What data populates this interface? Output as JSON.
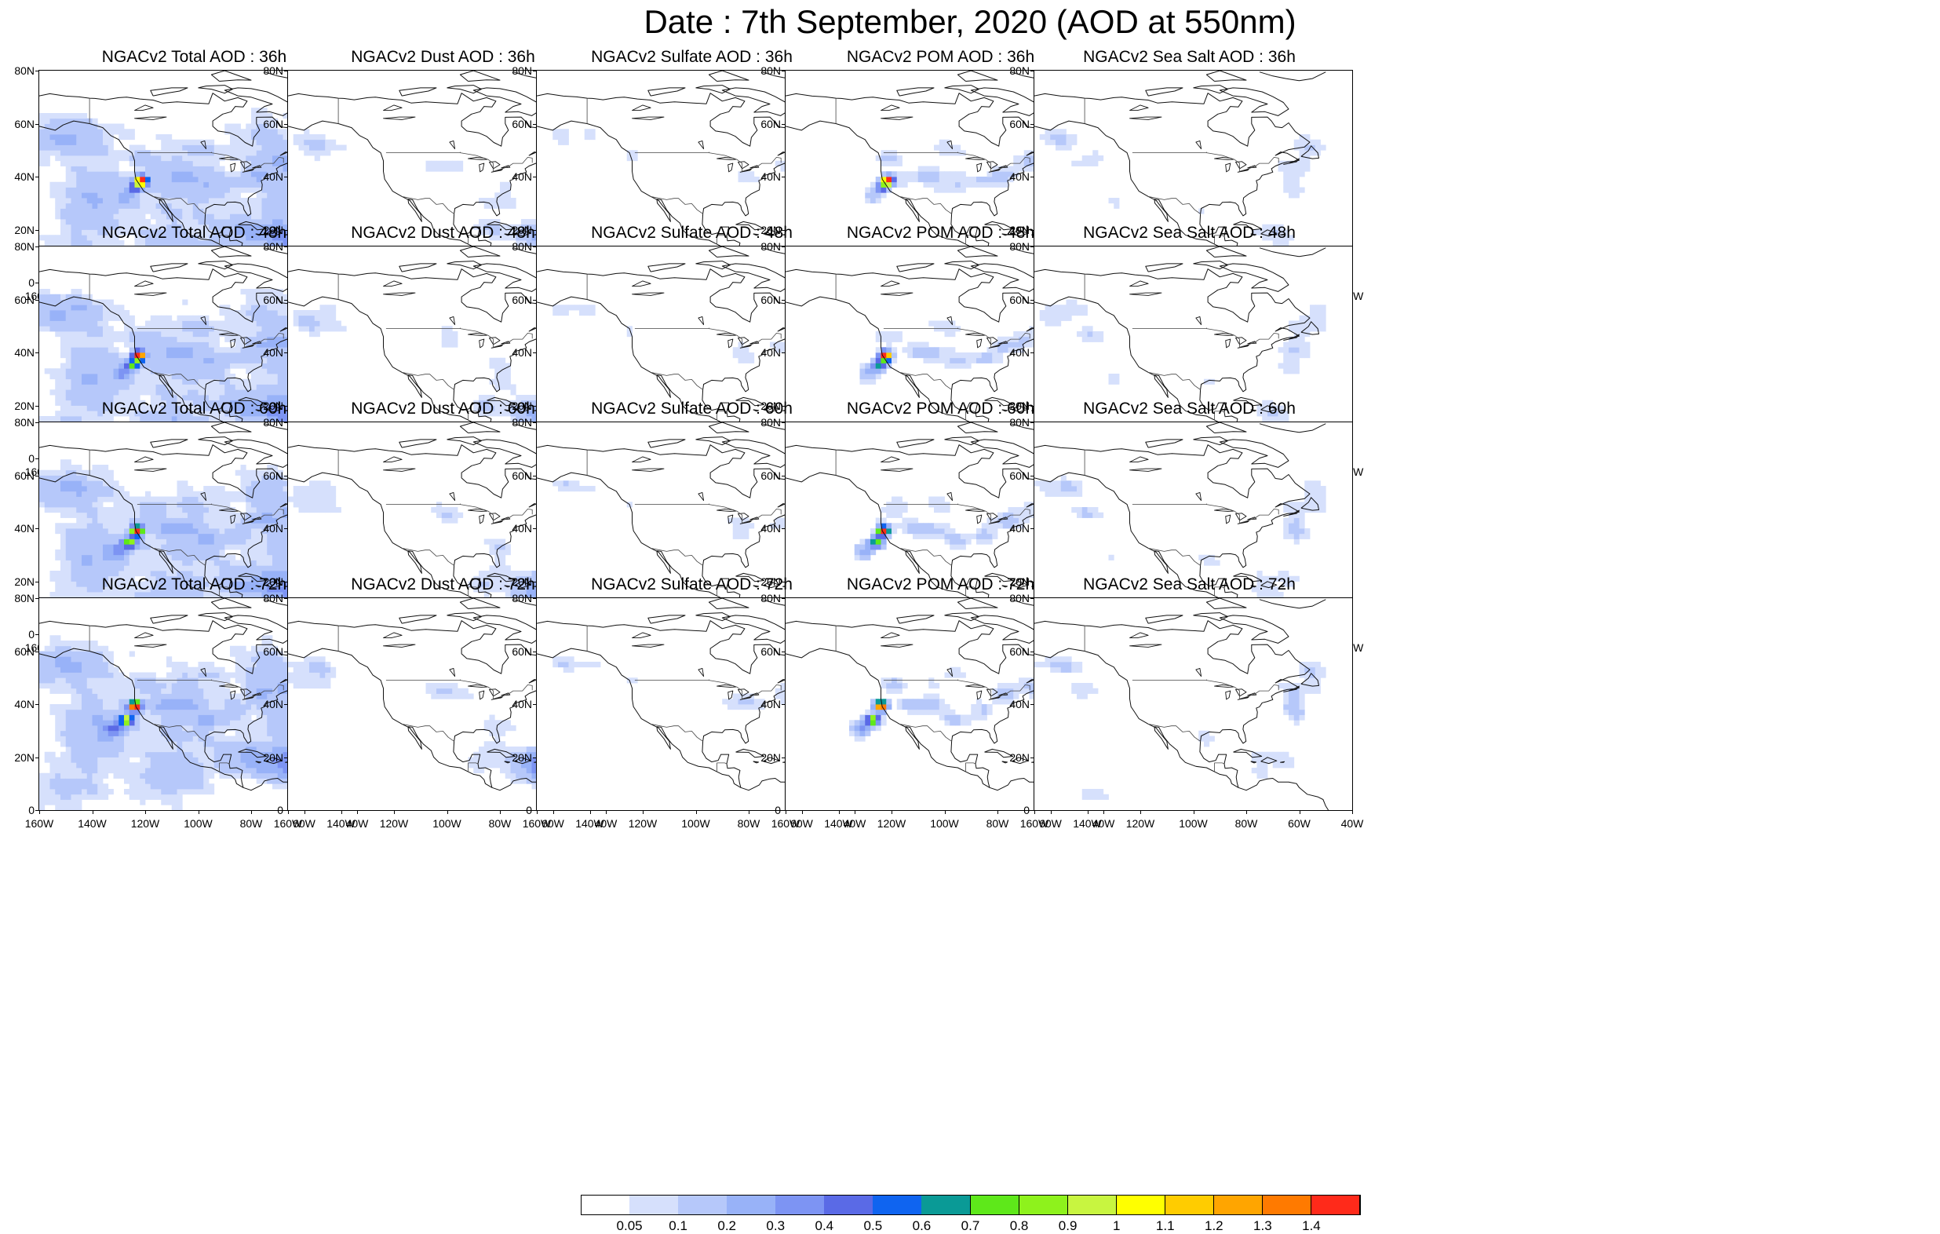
{
  "title": "Date : 7th September, 2020 (AOD at 550nm)",
  "y_tick_labels": [
    "80N",
    "60N",
    "40N",
    "20N",
    "0"
  ],
  "x_tick_labels": [
    "160W",
    "140W",
    "120W",
    "100W",
    "80W",
    "60W",
    "40W"
  ],
  "panels": [
    {
      "title": "NGACv2 Total AOD : 36h",
      "species": "total",
      "hour": 36
    },
    {
      "title": "NGACv2 Dust AOD : 36h",
      "species": "dust",
      "hour": 36
    },
    {
      "title": "NGACv2 Sulfate AOD : 36h",
      "species": "sulfate",
      "hour": 36
    },
    {
      "title": "NGACv2 POM AOD : 36h",
      "species": "pom",
      "hour": 36
    },
    {
      "title": "NGACv2 Sea Salt AOD : 36h",
      "species": "seasalt",
      "hour": 36
    },
    {
      "title": "NGACv2 Total AOD : 48h",
      "species": "total",
      "hour": 48
    },
    {
      "title": "NGACv2 Dust AOD : 48h",
      "species": "dust",
      "hour": 48
    },
    {
      "title": "NGACv2 Sulfate AOD : 48h",
      "species": "sulfate",
      "hour": 48
    },
    {
      "title": "NGACv2 POM AOD : 48h",
      "species": "pom",
      "hour": 48
    },
    {
      "title": "NGACv2 Sea Salt AOD : 48h",
      "species": "seasalt",
      "hour": 48
    },
    {
      "title": "NGACv2 Total AOD : 60h",
      "species": "total",
      "hour": 60
    },
    {
      "title": "NGACv2 Dust AOD : 60h",
      "species": "dust",
      "hour": 60
    },
    {
      "title": "NGACv2 Sulfate AOD : 60h",
      "species": "sulfate",
      "hour": 60
    },
    {
      "title": "NGACv2 POM AOD : 60h",
      "species": "pom",
      "hour": 60
    },
    {
      "title": "NGACv2 Sea Salt AOD : 60h",
      "species": "seasalt",
      "hour": 60
    },
    {
      "title": "NGACv2 Total AOD : 72h",
      "species": "total",
      "hour": 72
    },
    {
      "title": "NGACv2 Dust AOD : 72h",
      "species": "dust",
      "hour": 72
    },
    {
      "title": "NGACv2 Sulfate AOD : 72h",
      "species": "sulfate",
      "hour": 72
    },
    {
      "title": "NGACv2 POM AOD : 72h",
      "species": "pom",
      "hour": 72
    },
    {
      "title": "NGACv2 Sea Salt  AOD : 72h",
      "species": "seasalt",
      "hour": 72
    }
  ],
  "colorbar": {
    "labels": [
      "0.05",
      "0.1",
      "0.2",
      "0.3",
      "0.4",
      "0.5",
      "0.6",
      "0.7",
      "0.8",
      "0.9",
      "1",
      "1.1",
      "1.2",
      "1.3",
      "1.4"
    ],
    "colors": [
      "#ffffff",
      "#d6e0fc",
      "#b6c8fa",
      "#98b2f8",
      "#7d94f3",
      "#5a6ae6",
      "#0f64f0",
      "#0a9a96",
      "#5ee81a",
      "#8ef21c",
      "#c8f540",
      "#ffff00",
      "#ffcc00",
      "#ffa500",
      "#ff7a00",
      "#ff2a1a"
    ]
  },
  "map_extent": {
    "lon_min": -160,
    "lon_max": -40,
    "lat_min": 0,
    "lat_max": 80
  }
}
